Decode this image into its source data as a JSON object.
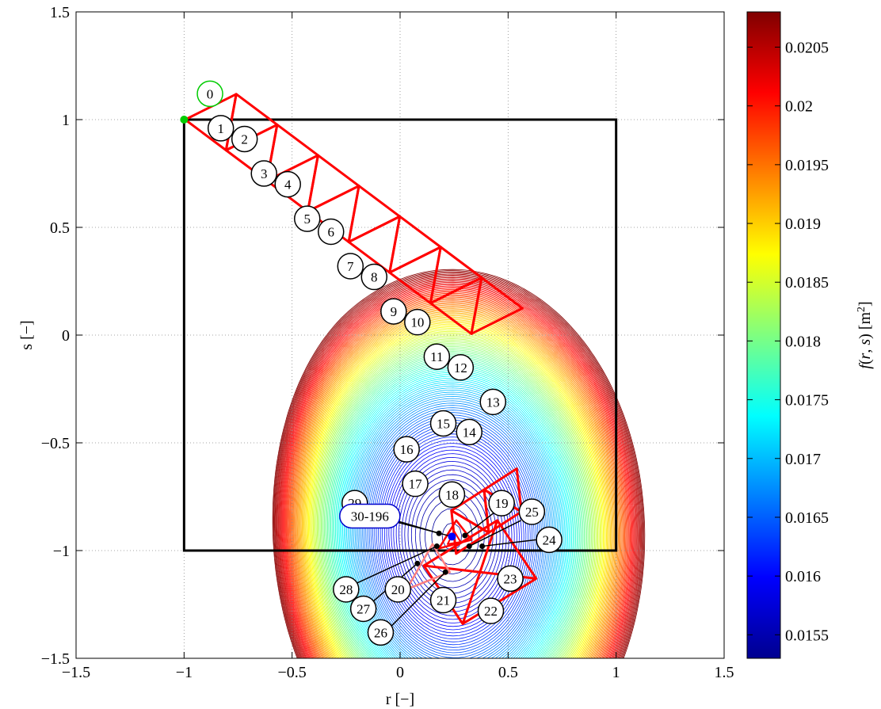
{
  "chart_data": {
    "type": "contour",
    "xlabel": "r [−]",
    "ylabel": "s [−]",
    "xlim": [
      -1.5,
      1.5
    ],
    "ylim": [
      -1.5,
      1.5
    ],
    "xticks": [
      -1.5,
      -1,
      -0.5,
      0,
      0.5,
      1,
      1.5
    ],
    "xtick_labels": [
      "−1.5",
      "−1",
      "−0.5",
      "0",
      "0.5",
      "1",
      "1.5"
    ],
    "yticks": [
      -1.5,
      -1,
      -0.5,
      0,
      0.5,
      1,
      1.5
    ],
    "ytick_labels": [
      "−1.5",
      "−1",
      "−0.5",
      "0",
      "0.5",
      "1",
      "1.5"
    ],
    "grid": "dotted",
    "colorbar": {
      "label": "f(r, s) [m²]",
      "range": [
        0.0153,
        0.0208
      ],
      "ticks": [
        0.0155,
        0.016,
        0.0165,
        0.017,
        0.0175,
        0.018,
        0.0185,
        0.019,
        0.0195,
        0.02,
        0.0205
      ],
      "tick_labels": [
        "0.0155",
        "0.016",
        "0.0165",
        "0.017",
        "0.0175",
        "0.018",
        "0.0185",
        "0.019",
        "0.0195",
        "0.02",
        "0.0205"
      ],
      "colormap": "jet"
    },
    "feasible_region": {
      "r": [
        -1,
        1
      ],
      "s": [
        -1,
        1
      ],
      "color": "#000000"
    },
    "start_point": {
      "r": -1,
      "s": 1,
      "color": "#00cc00"
    },
    "optimum_point": {
      "r": 0.24,
      "s": -0.935,
      "color": "#0000ff"
    },
    "simplex_color": "#ff0000",
    "late_simplex_color": "#ff8080",
    "strip1": {
      "base": [
        -0.995,
        1.0
      ],
      "dir": [
        0.52,
        -0.39
      ],
      "perp": [
        0.39,
        0.52
      ],
      "scale": 0.364,
      "n": 14
    },
    "strip2": {
      "base": [
        0.54,
        -0.62
      ],
      "dir": [
        -0.42,
        -0.27
      ],
      "perp": [
        0.27,
        -0.42
      ],
      "scale": 0.36,
      "n": 4
    },
    "diamond": [
      [
        0.29,
        -1.34
      ],
      [
        0.63,
        -1.13
      ],
      [
        0.45,
        -0.86
      ],
      [
        0.11,
        -1.07
      ]
    ],
    "diamond_center": [
      0.37,
      -1.1
    ],
    "small_simplex": [
      [
        0.18,
        -0.99
      ],
      [
        0.33,
        -0.95
      ],
      [
        0.26,
        -0.86
      ]
    ],
    "small_simplex2": [
      [
        0.22,
        -0.97
      ],
      [
        0.28,
        -0.96
      ],
      [
        0.25,
        -0.91
      ]
    ],
    "late_tri": [
      [
        0.03,
        -1.18
      ],
      [
        0.15,
        -0.97
      ],
      [
        0.23,
        -1.1
      ]
    ],
    "labels": [
      {
        "text": "0",
        "r": -0.88,
        "s": 1.12,
        "color": "#00cc00"
      },
      {
        "text": "1",
        "r": -0.83,
        "s": 0.96
      },
      {
        "text": "2",
        "r": -0.72,
        "s": 0.91
      },
      {
        "text": "3",
        "r": -0.63,
        "s": 0.75
      },
      {
        "text": "4",
        "r": -0.52,
        "s": 0.7
      },
      {
        "text": "5",
        "r": -0.43,
        "s": 0.54
      },
      {
        "text": "6",
        "r": -0.32,
        "s": 0.48
      },
      {
        "text": "7",
        "r": -0.23,
        "s": 0.32
      },
      {
        "text": "8",
        "r": -0.12,
        "s": 0.27
      },
      {
        "text": "9",
        "r": -0.03,
        "s": 0.11
      },
      {
        "text": "10",
        "r": 0.08,
        "s": 0.06
      },
      {
        "text": "11",
        "r": 0.17,
        "s": -0.1
      },
      {
        "text": "12",
        "r": 0.28,
        "s": -0.15
      },
      {
        "text": "13",
        "r": 0.43,
        "s": -0.31
      },
      {
        "text": "14",
        "r": 0.32,
        "s": -0.45
      },
      {
        "text": "15",
        "r": 0.2,
        "s": -0.41
      },
      {
        "text": "16",
        "r": 0.03,
        "s": -0.53
      },
      {
        "text": "17",
        "r": 0.07,
        "s": -0.69
      },
      {
        "text": "18",
        "r": 0.24,
        "s": -0.74
      },
      {
        "text": "19",
        "r": 0.47,
        "s": -0.78
      },
      {
        "text": "20",
        "r": -0.01,
        "s": -1.18
      },
      {
        "text": "21",
        "r": 0.2,
        "s": -1.23
      },
      {
        "text": "22",
        "r": 0.42,
        "s": -1.28
      },
      {
        "text": "23",
        "r": 0.51,
        "s": -1.13
      },
      {
        "text": "24",
        "r": 0.69,
        "s": -0.95
      },
      {
        "text": "25",
        "r": 0.61,
        "s": -0.82
      },
      {
        "text": "26",
        "r": -0.09,
        "s": -1.38
      },
      {
        "text": "27",
        "r": -0.17,
        "s": -1.27
      },
      {
        "text": "28",
        "r": -0.25,
        "s": -1.18
      },
      {
        "text": "29",
        "r": -0.21,
        "s": -0.78,
        "anchor": "29"
      },
      {
        "text": "30-196",
        "r": -0.14,
        "s": -0.84,
        "color": "#0000cc",
        "wide": true
      }
    ],
    "leaders": [
      {
        "from": [
          -0.16,
          -0.83
        ],
        "to": [
          0.24,
          -0.935
        ]
      },
      {
        "from": [
          -0.19,
          -0.81
        ],
        "to": [
          0.18,
          -0.92
        ]
      },
      {
        "from": [
          0.44,
          -0.82
        ],
        "to": [
          0.3,
          -0.93
        ]
      },
      {
        "from": [
          0.56,
          -0.86
        ],
        "to": [
          0.32,
          -0.98
        ]
      },
      {
        "from": [
          0.63,
          -0.95
        ],
        "to": [
          0.38,
          -0.98
        ]
      },
      {
        "from": [
          -0.22,
          -1.16
        ],
        "to": [
          0.17,
          -0.98
        ]
      },
      {
        "from": [
          -0.13,
          -1.24
        ],
        "to": [
          0.08,
          -1.06
        ]
      },
      {
        "from": [
          -0.04,
          -1.35
        ],
        "to": [
          0.21,
          -1.1
        ]
      }
    ]
  }
}
